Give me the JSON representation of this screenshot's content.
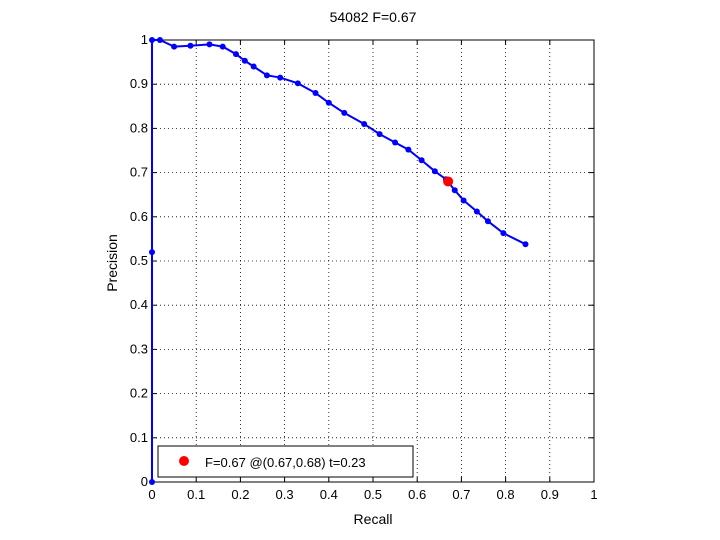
{
  "chart_data": {
    "type": "line",
    "title": "54082 F=0.67",
    "xlabel": "Recall",
    "ylabel": "Precision",
    "xlim": [
      0,
      1
    ],
    "ylim": [
      0,
      1
    ],
    "xticks": [
      "0",
      "0.1",
      "0.2",
      "0.3",
      "0.4",
      "0.5",
      "0.6",
      "0.7",
      "0.8",
      "0.9",
      "1"
    ],
    "yticks": [
      "0",
      "0.1",
      "0.2",
      "0.3",
      "0.4",
      "0.5",
      "0.6",
      "0.7",
      "0.8",
      "0.9",
      "1"
    ],
    "grid": true,
    "series": [
      {
        "color": "#0000ff",
        "marker": "circle",
        "x": [
          0,
          0,
          0,
          0.018,
          0.05,
          0.087,
          0.13,
          0.16,
          0.19,
          0.21,
          0.23,
          0.26,
          0.29,
          0.33,
          0.37,
          0.4,
          0.435,
          0.48,
          0.515,
          0.55,
          0.58,
          0.61,
          0.64,
          0.665,
          0.685,
          0.705,
          0.735,
          0.76,
          0.795,
          0.845
        ],
        "y": [
          0,
          0.52,
          1.0,
          1.0,
          0.985,
          0.987,
          0.99,
          0.985,
          0.968,
          0.953,
          0.94,
          0.92,
          0.915,
          0.902,
          0.88,
          0.858,
          0.835,
          0.81,
          0.787,
          0.768,
          0.752,
          0.728,
          0.703,
          0.685,
          0.66,
          0.637,
          0.612,
          0.59,
          0.563,
          0.538
        ]
      }
    ],
    "highlight": {
      "x": 0.67,
      "y": 0.68,
      "color": "#ff0000"
    },
    "legend": {
      "position": "bottom-left",
      "text": "F=0.67 @(0.67,0.68) t=0.23"
    }
  }
}
